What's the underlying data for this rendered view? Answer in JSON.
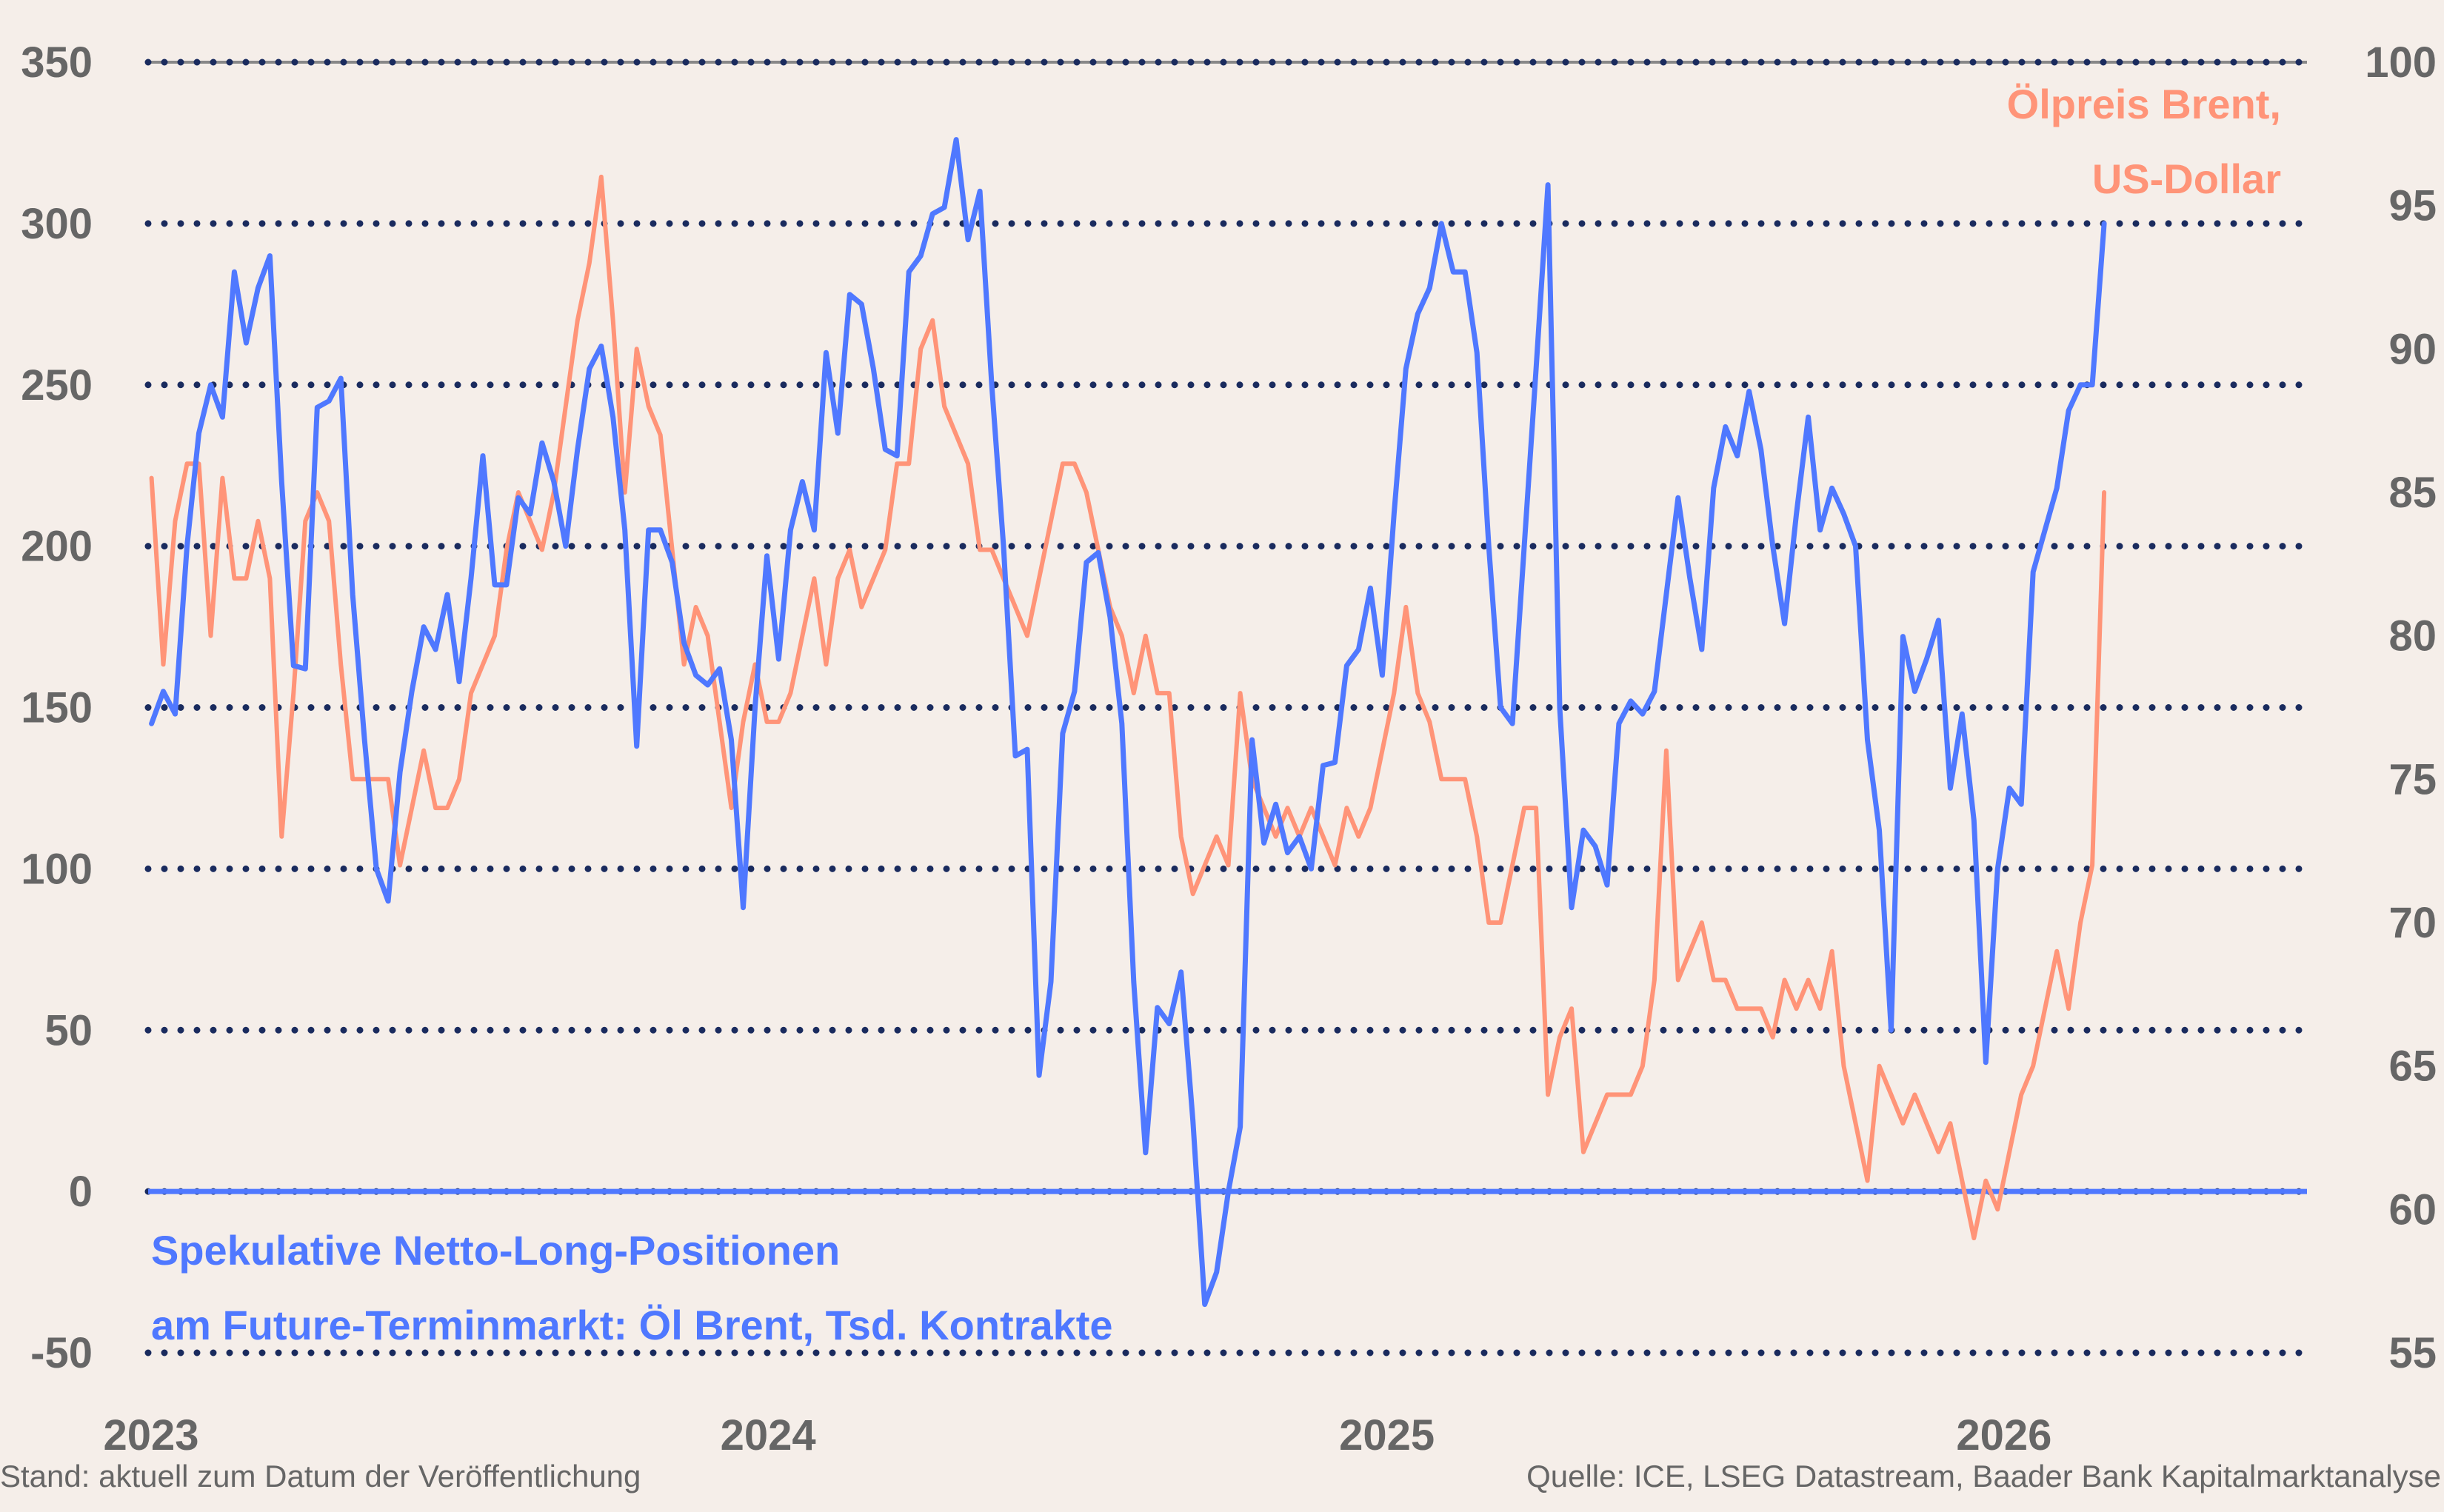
{
  "footer": {
    "left": "Stand: aktuell zum Datum der Veröffentlichung",
    "right": "Quelle: ICE, LSEG Datastream, Baader Bank Kapitalmarktanalyse"
  },
  "chart_data": {
    "type": "line",
    "background": "#f5eee9",
    "grid": true,
    "grid_color": "#1a2b5e",
    "xlim": [
      "2023-01-01",
      "2026-07-01"
    ],
    "x_ticks": [
      "2023",
      "2024",
      "2025",
      "2026"
    ],
    "y_left": {
      "lim": [
        -50,
        350
      ],
      "ticks": [
        350,
        300,
        250,
        200,
        150,
        100,
        50,
        0,
        -50
      ]
    },
    "y_right": {
      "lim": [
        55,
        100
      ],
      "ticks": [
        100,
        95,
        90,
        85,
        80,
        75,
        70,
        65,
        60,
        55
      ]
    },
    "x": [
      "2023-01-03",
      "2023-01-10",
      "2023-01-17",
      "2023-01-24",
      "2023-01-31",
      "2023-02-07",
      "2023-02-14",
      "2023-02-21",
      "2023-02-28",
      "2023-03-07",
      "2023-03-14",
      "2023-03-21",
      "2023-03-28",
      "2023-04-04",
      "2023-04-11",
      "2023-04-18",
      "2023-04-25",
      "2023-05-02",
      "2023-05-09",
      "2023-05-16",
      "2023-05-23",
      "2023-05-30",
      "2023-06-06",
      "2023-06-13",
      "2023-06-20",
      "2023-06-27",
      "2023-07-04",
      "2023-07-11",
      "2023-07-18",
      "2023-07-25",
      "2023-08-01",
      "2023-08-08",
      "2023-08-15",
      "2023-08-22",
      "2023-08-29",
      "2023-09-05",
      "2023-09-12",
      "2023-09-19",
      "2023-09-26",
      "2023-10-03",
      "2023-10-10",
      "2023-10-17",
      "2023-10-24",
      "2023-10-31",
      "2023-11-07",
      "2023-11-14",
      "2023-11-21",
      "2023-11-28",
      "2023-12-05",
      "2023-12-12",
      "2023-12-19",
      "2023-12-26",
      "2024-01-02",
      "2024-01-09",
      "2024-01-16",
      "2024-01-23",
      "2024-01-30",
      "2024-02-06",
      "2024-02-13",
      "2024-02-20",
      "2024-02-27",
      "2024-03-05",
      "2024-03-12",
      "2024-03-19",
      "2024-03-26",
      "2024-04-02",
      "2024-04-09",
      "2024-04-16",
      "2024-04-23",
      "2024-04-30",
      "2024-05-07",
      "2024-05-14",
      "2024-05-21",
      "2024-05-28",
      "2024-06-04",
      "2024-06-11",
      "2024-06-18",
      "2024-06-25",
      "2024-07-02",
      "2024-07-09",
      "2024-07-16",
      "2024-07-23",
      "2024-07-30",
      "2024-08-06",
      "2024-08-13",
      "2024-08-20",
      "2024-08-27",
      "2024-09-03",
      "2024-09-10",
      "2024-09-17",
      "2024-09-24",
      "2024-10-01",
      "2024-10-08",
      "2024-10-15",
      "2024-10-22",
      "2024-10-29",
      "2024-11-05",
      "2024-11-12",
      "2024-11-19",
      "2024-11-26",
      "2024-12-03",
      "2024-12-10",
      "2024-12-17",
      "2024-12-24",
      "2024-12-31",
      "2025-01-07",
      "2025-01-14",
      "2025-01-21",
      "2025-01-28",
      "2025-02-04",
      "2025-02-11",
      "2025-02-18",
      "2025-02-25",
      "2025-03-04",
      "2025-03-11",
      "2025-03-18",
      "2025-03-25",
      "2025-04-01",
      "2025-04-08",
      "2025-04-15",
      "2025-04-22",
      "2025-04-29",
      "2025-05-06",
      "2025-05-13",
      "2025-05-20",
      "2025-05-27",
      "2025-06-03",
      "2025-06-10",
      "2025-06-17",
      "2025-06-24",
      "2025-07-01",
      "2025-07-08",
      "2025-07-15",
      "2025-07-22",
      "2025-07-29",
      "2025-08-05",
      "2025-08-12",
      "2025-08-19",
      "2025-08-26",
      "2025-09-02",
      "2025-09-09",
      "2025-09-16",
      "2025-09-23",
      "2025-09-30",
      "2025-10-07",
      "2025-10-14",
      "2025-10-21",
      "2025-10-28",
      "2025-11-04",
      "2025-11-11",
      "2025-11-18",
      "2025-11-25",
      "2025-12-02",
      "2025-12-09",
      "2025-12-16",
      "2025-12-23",
      "2025-12-30",
      "2026-01-06",
      "2026-01-13",
      "2026-01-20",
      "2026-01-27",
      "2026-02-03",
      "2026-02-10",
      "2026-02-17",
      "2026-02-24",
      "2026-03-03"
    ],
    "series": [
      {
        "name": "Spekulative Netto-Long-Positionen am Future-Terminmarkt: Öl Brent, Tsd. Kontrakte",
        "label_lines": [
          "Spekulative Netto-Long-Positionen",
          "am Future-Terminmarkt: Öl Brent, Tsd. Kontrakte"
        ],
        "axis": "left",
        "color": "#4f78ff",
        "values": [
          145,
          155,
          148,
          200,
          235,
          250,
          240,
          285,
          263,
          280,
          290,
          220,
          163,
          162,
          243,
          245,
          252,
          185,
          140,
          100,
          90,
          130,
          155,
          175,
          168,
          185,
          158,
          190,
          228,
          188,
          188,
          215,
          210,
          232,
          220,
          200,
          230,
          255,
          262,
          240,
          205,
          138,
          205,
          205,
          195,
          170,
          160,
          157,
          162,
          140,
          88,
          150,
          197,
          165,
          205,
          220,
          205,
          260,
          235,
          278,
          275,
          255,
          230,
          228,
          285,
          290,
          303,
          305,
          326,
          295,
          310,
          250,
          200,
          135,
          137,
          36,
          65,
          142,
          155,
          195,
          198,
          178,
          145,
          65,
          12,
          57,
          52,
          68,
          22,
          -35,
          -25,
          0,
          20,
          140,
          108,
          120,
          105,
          110,
          100,
          132,
          133,
          163,
          168,
          187,
          160,
          210,
          255,
          272,
          280,
          300,
          285,
          285,
          260,
          200,
          150,
          145,
          200,
          255,
          312,
          150,
          88,
          112,
          107,
          95,
          145,
          152,
          148,
          155,
          185,
          215,
          190,
          168,
          218,
          237,
          228,
          248,
          230,
          200,
          176,
          210,
          240,
          205,
          218,
          210,
          200,
          140,
          112,
          50,
          172,
          155,
          165,
          177,
          125,
          148,
          115,
          40,
          100,
          125,
          120,
          192,
          205,
          218,
          242,
          250,
          250,
          300
        ]
      },
      {
        "name": "Ölpreis Brent, US-Dollar",
        "label_lines": [
          "Ölpreis Brent,",
          "US-Dollar"
        ],
        "axis": "right",
        "color": "#ff9478",
        "values": [
          85.5,
          79,
          84,
          86,
          86,
          80,
          85.5,
          82,
          82,
          84,
          82,
          73,
          78,
          84,
          85,
          84,
          79,
          75,
          75,
          75,
          75,
          72,
          74,
          76,
          74,
          74,
          75,
          78,
          79,
          80,
          83,
          85,
          84,
          83,
          85,
          88,
          91,
          93,
          96,
          91,
          85,
          90,
          88,
          87,
          83,
          79,
          81,
          80,
          77,
          74,
          77,
          79,
          77,
          77,
          78,
          80,
          82,
          79,
          82,
          83,
          81,
          82,
          83,
          86,
          86,
          90,
          91,
          88,
          87,
          86,
          83,
          83,
          82,
          81,
          80,
          82,
          84,
          86,
          86,
          85,
          83,
          81,
          80,
          78,
          80,
          78,
          78,
          73,
          71,
          72,
          73,
          72,
          78,
          75,
          74,
          73,
          74,
          73,
          74,
          73,
          72,
          74,
          73,
          74,
          76,
          78,
          81,
          78,
          77,
          75,
          75,
          75,
          73,
          70,
          70,
          72,
          74,
          74,
          64,
          66,
          67,
          62,
          63,
          64,
          64,
          64,
          65,
          68,
          76,
          68,
          69,
          70,
          68,
          68,
          67,
          67,
          67,
          66,
          68,
          67,
          68,
          67,
          69,
          65,
          63,
          61,
          65,
          64,
          63,
          64,
          63,
          62,
          63,
          61,
          59,
          61,
          60,
          62,
          64,
          65,
          67,
          69,
          67,
          70,
          72,
          85
        ]
      }
    ],
    "zero_line_color": "#4f78ff"
  }
}
